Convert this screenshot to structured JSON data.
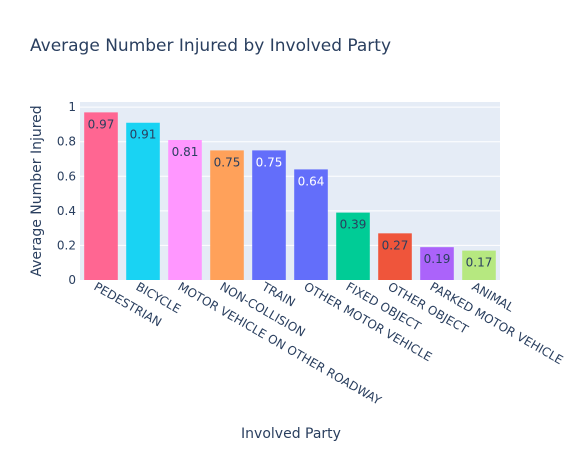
{
  "chart_data": {
    "type": "bar",
    "title": "Average Number Injured by Involved Party",
    "xlabel": "Involved Party",
    "ylabel": "Average Number Injured",
    "ylim": [
      0,
      1.03
    ],
    "yticks": [
      0,
      0.2,
      0.4,
      0.6,
      0.8,
      1
    ],
    "ytick_labels": [
      "0",
      "0.2",
      "0.4",
      "0.6",
      "0.8",
      "1"
    ],
    "grid": true,
    "categories": [
      "PEDESTRIAN",
      "BICYCLE",
      "MOTOR VEHICLE ON OTHER ROADWAY",
      "NON-COLLISION",
      "TRAIN",
      "OTHER MOTOR VEHICLE",
      "FIXED OBJECT",
      "OTHER OBJECT",
      "PARKED MOTOR VEHICLE",
      "ANIMAL"
    ],
    "values": [
      0.97,
      0.91,
      0.81,
      0.75,
      0.75,
      0.64,
      0.39,
      0.27,
      0.19,
      0.17
    ],
    "value_labels": [
      "0.97",
      "0.91",
      "0.81",
      "0.75",
      "0.75",
      "0.64",
      "0.39",
      "0.27",
      "0.19",
      "0.17"
    ],
    "bar_colors": [
      "#FF6692",
      "#19D3F3",
      "#FF97FF",
      "#FFA15A",
      "#636EFA",
      "#636EFA",
      "#00CC96",
      "#EF553B",
      "#AB63FA",
      "#B6E880"
    ],
    "label_colors": [
      "#2a3f5f",
      "#2a3f5f",
      "#2a3f5f",
      "#2a3f5f",
      "#ffffff",
      "#ffffff",
      "#2a3f5f",
      "#2a3f5f",
      "#2a3f5f",
      "#2a3f5f"
    ],
    "plot_bg": "#E5ECF6",
    "text_color": "#2a3f5f"
  }
}
